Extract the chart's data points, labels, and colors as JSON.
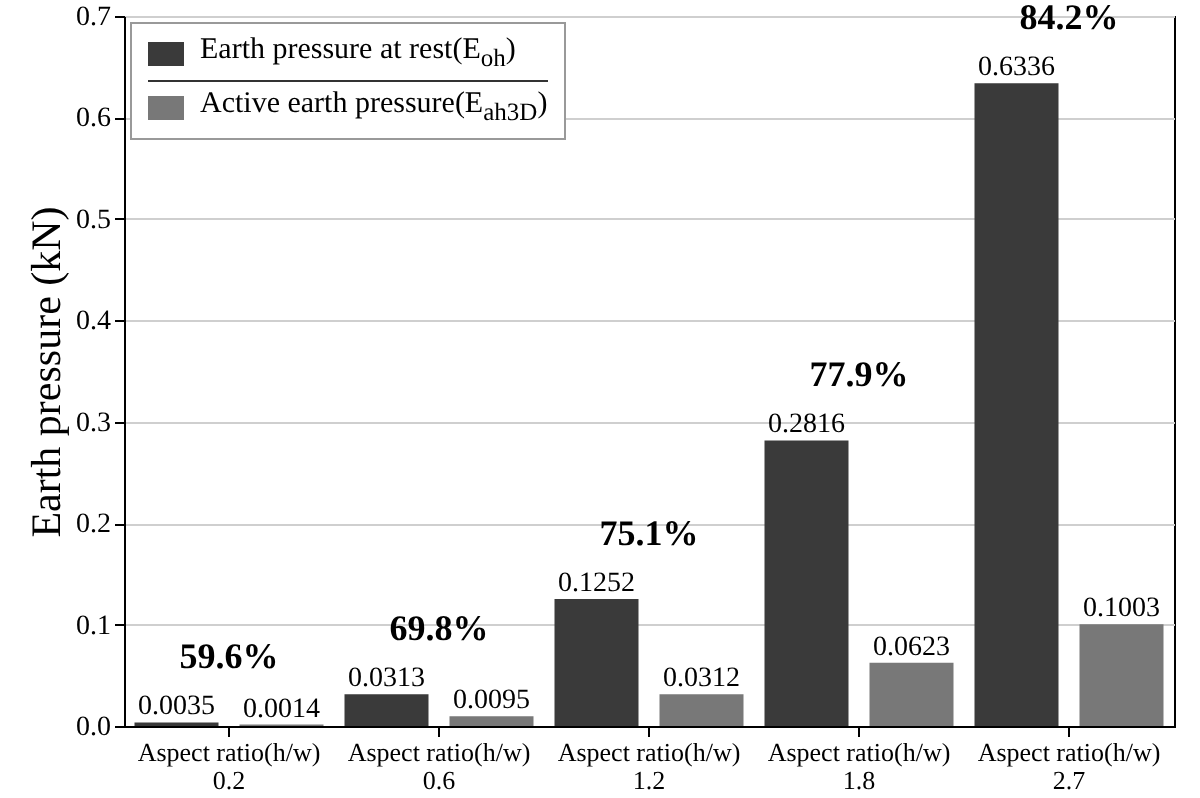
{
  "chart_data": {
    "type": "bar",
    "ylabel": "Earth pressure (kN)",
    "categories": [
      "Aspect ratio(h/w)\n0.2",
      "Aspect ratio(h/w)\n0.6",
      "Aspect ratio(h/w)\n1.2",
      "Aspect ratio(h/w)\n1.8",
      "Aspect ratio(h/w)\n2.7"
    ],
    "series": [
      {
        "name": "Earth pressure at rest(E$_{oh}$)",
        "color": "#3a3a3a",
        "values": [
          0.0035,
          0.0313,
          0.1252,
          0.2816,
          0.6336
        ]
      },
      {
        "name": "Active earth pressure(E$_{ah3D}$)",
        "color": "#787878",
        "values": [
          0.0014,
          0.0095,
          0.0312,
          0.0623,
          0.1003
        ]
      }
    ],
    "ylim": [
      0,
      0.7
    ],
    "yticks": [
      {
        "value": 0,
        "label": "0.0"
      },
      0.1,
      0.2,
      0.3,
      0.4,
      0.5,
      0.6,
      0.7
    ],
    "grid": "y",
    "legend": "top left",
    "data_labels": true,
    "annotations": [
      "59.6%",
      "69.8%",
      "75.1%",
      "77.9%",
      "84.2%"
    ]
  }
}
